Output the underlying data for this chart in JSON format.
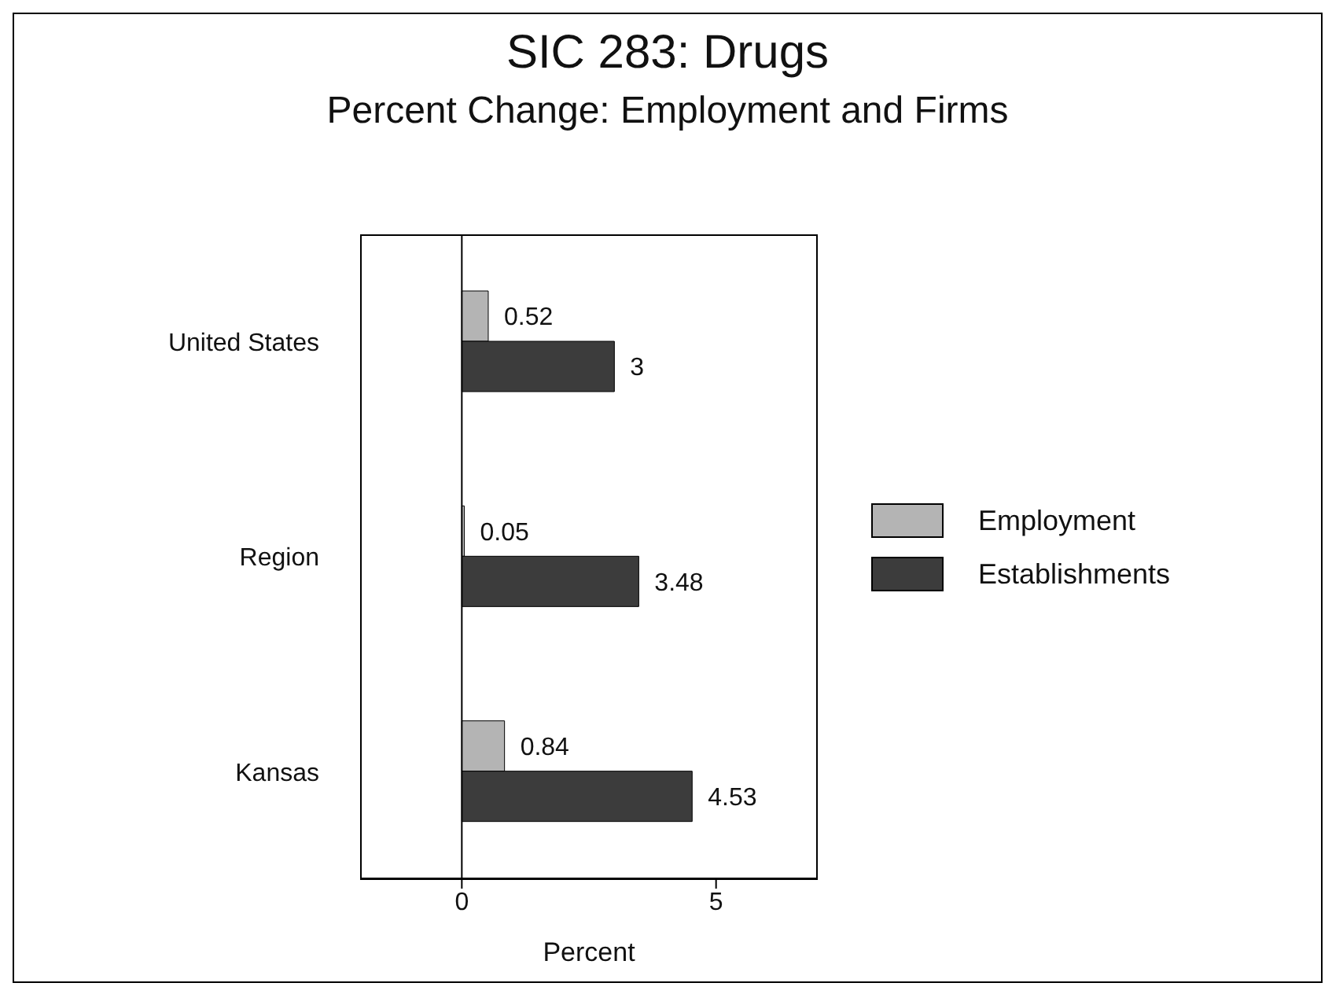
{
  "chart_data": {
    "type": "bar",
    "orientation": "horizontal",
    "title": "SIC 283: Drugs",
    "subtitle": "Percent Change: Employment and Firms",
    "xlabel": "Percent",
    "categories": [
      "United States",
      "Region",
      "Kansas"
    ],
    "series": [
      {
        "name": "Employment",
        "color": "#b4b4b4",
        "values": [
          0.52,
          0.05,
          0.84
        ]
      },
      {
        "name": "Establishments",
        "color": "#3c3c3c",
        "values": [
          3,
          3.48,
          4.53
        ]
      }
    ],
    "xlim": [
      -2,
      7
    ],
    "xticks": [
      0,
      5
    ],
    "legend": "right",
    "data_labels": true,
    "ref_lines": [
      {
        "axis": "x",
        "value": 0,
        "color": "#000000"
      }
    ]
  }
}
